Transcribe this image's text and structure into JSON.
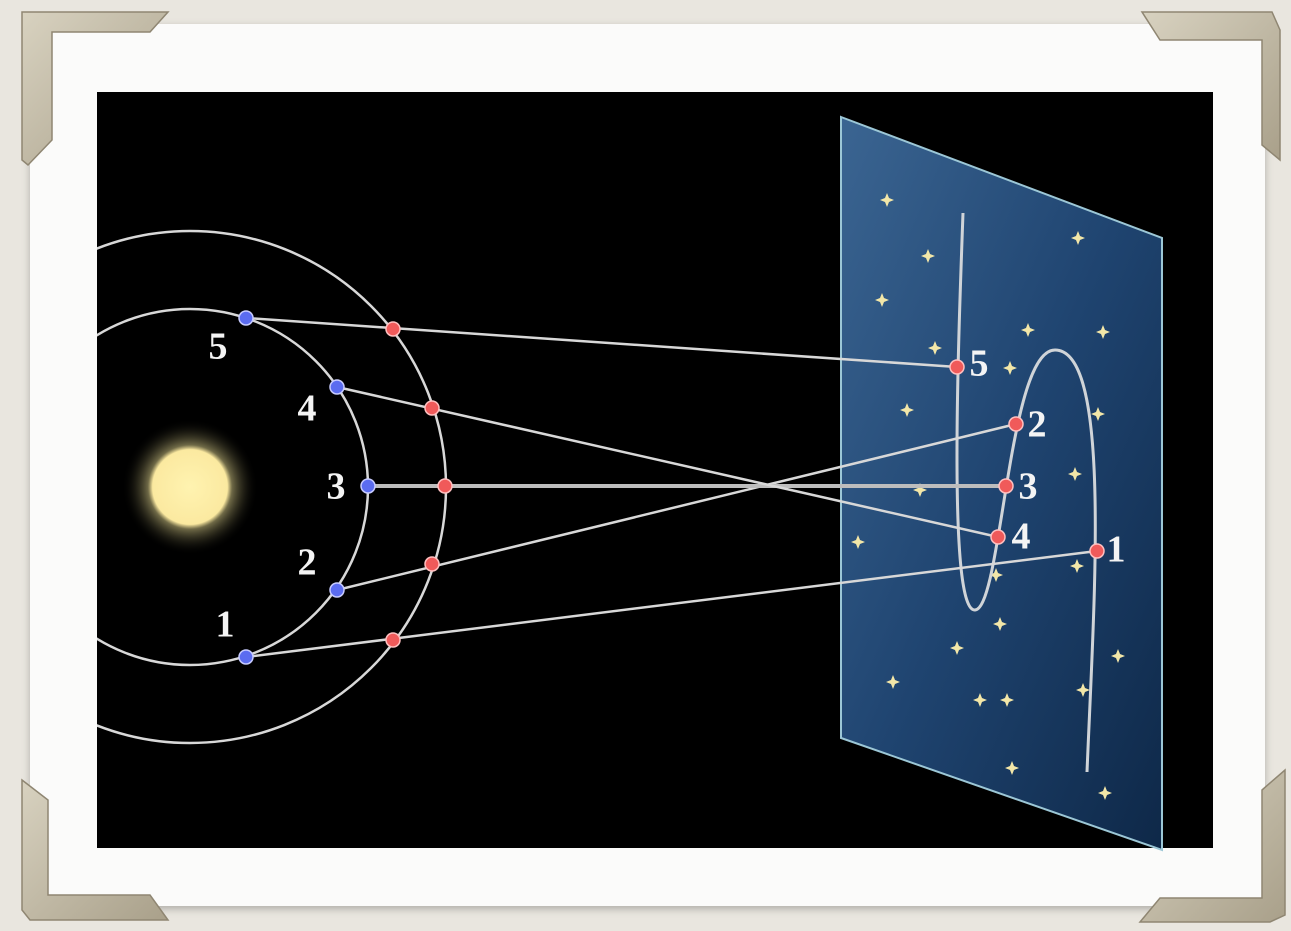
{
  "earth_positions": [
    {
      "label": "1"
    },
    {
      "label": "2"
    },
    {
      "label": "3"
    },
    {
      "label": "4"
    },
    {
      "label": "5"
    }
  ],
  "projected_positions": [
    {
      "label": "1"
    },
    {
      "label": "2"
    },
    {
      "label": "3"
    },
    {
      "label": "4"
    },
    {
      "label": "5"
    }
  ]
}
